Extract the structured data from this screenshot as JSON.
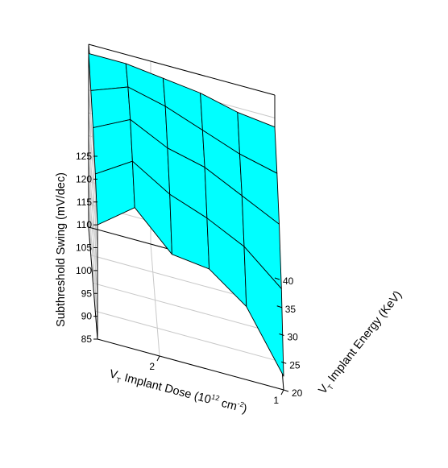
{
  "chart_data": {
    "type": "surface3d",
    "title": "",
    "x_axis": {
      "label_main": "V",
      "label_sub": "T",
      "label_rest": " Implant Dose (10",
      "label_sup1": "12",
      "label_unit": " cm",
      "label_sup2": "-2",
      "label_close": ")",
      "range": [
        1,
        2.5
      ],
      "tick_values": [
        1,
        2
      ],
      "tick_labels": [
        "1",
        "2"
      ]
    },
    "y_axis": {
      "label_main": "V",
      "label_sub": "T",
      "label_rest": " Implant Energy (KeV)",
      "range": [
        20,
        40
      ],
      "tick_values": [
        20,
        25,
        30,
        35,
        40
      ],
      "tick_labels": [
        "20",
        "25",
        "30",
        "35",
        "40"
      ]
    },
    "z_axis": {
      "label": "Subthreshold Swing (mV/dec)",
      "range": [
        85,
        125
      ],
      "tick_values": [
        85,
        90,
        95,
        100,
        105,
        110,
        115,
        120,
        125
      ],
      "tick_labels": [
        "85",
        "90",
        "95",
        "100",
        "105",
        "110",
        "115",
        "120",
        "125"
      ]
    },
    "grid": true,
    "surface_color": "#00ffff",
    "mesh_color": "#000000",
    "dose_values": [
      1.0,
      1.3,
      1.6,
      1.9,
      2.2,
      2.5
    ],
    "energy_values": [
      20,
      25,
      30,
      35,
      40
    ],
    "z_values": [
      [
        88,
        101,
        109,
        114,
        118
      ],
      [
        101,
        108,
        113,
        116,
        119
      ],
      [
        107,
        112,
        117,
        119,
        121
      ],
      [
        108,
        115,
        119,
        122,
        122
      ],
      [
        116,
        120,
        123,
        124,
        123
      ],
      [
        110,
        115,
        119,
        121,
        123
      ]
    ]
  }
}
